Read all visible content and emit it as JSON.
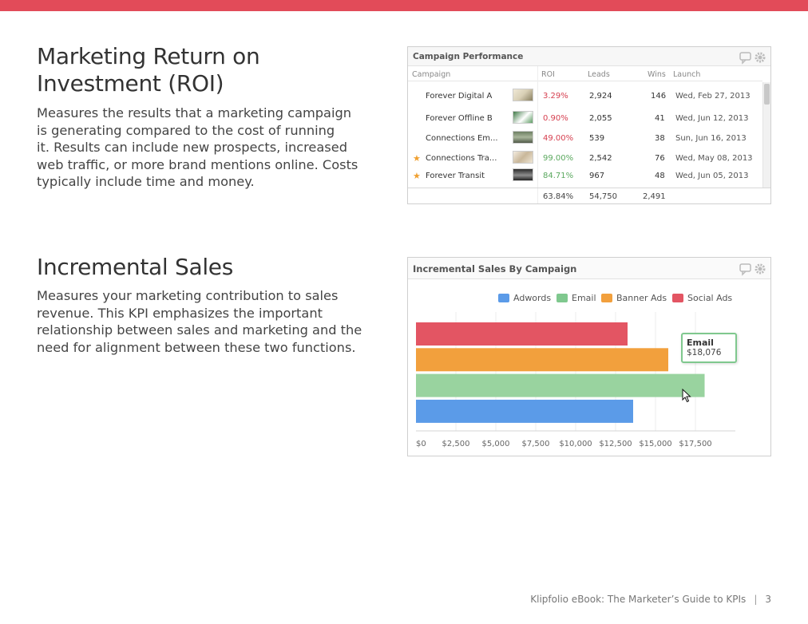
{
  "colors": {
    "accent": "#e24b59"
  },
  "roi": {
    "title_line1": "Marketing Return on",
    "title_line2": "Investment (ROI)",
    "body": [
      "Measures the results that a marketing campaign",
      "is generating compared to the cost of running",
      "it. Results can include new prospects, increased",
      "web traffic, or more brand mentions online. Costs",
      "typically include time and money."
    ]
  },
  "campaign_widget": {
    "title": "Campaign Performance",
    "icons": [
      "comment-icon",
      "gear-icon"
    ],
    "columns": [
      "Campaign",
      "ROI",
      "Leads",
      "Wins",
      "Launch"
    ],
    "rows": [
      {
        "name": "Forever Digital A",
        "roi": "3.29%",
        "roi_status": "red",
        "leads": "2,924",
        "wins": "146",
        "launch": "Wed, Feb 27, 2013",
        "starred": false
      },
      {
        "name": "Forever Offline B",
        "roi": "0.90%",
        "roi_status": "red",
        "leads": "2,055",
        "wins": "41",
        "launch": "Wed, Jun 12, 2013",
        "starred": false
      },
      {
        "name": "Connections Em...",
        "roi": "49.00%",
        "roi_status": "red",
        "leads": "539",
        "wins": "38",
        "launch": "Sun, Jun 16, 2013",
        "starred": false
      },
      {
        "name": "Connections Tra...",
        "roi": "99.00%",
        "roi_status": "green",
        "leads": "2,542",
        "wins": "76",
        "launch": "Wed, May 08, 2013",
        "starred": true
      },
      {
        "name": "Forever Transit",
        "roi": "84.71%",
        "roi_status": "green",
        "leads": "967",
        "wins": "48",
        "launch": "Wed, Jun 05, 2013",
        "starred": true
      }
    ],
    "totals": {
      "roi": "63.84%",
      "leads": "54,750",
      "wins": "2,491"
    }
  },
  "incremental": {
    "title": "Incremental Sales",
    "body": [
      "Measures your marketing contribution to sales",
      "revenue. This KPI emphasizes the important",
      "relationship between sales and marketing and the",
      "need for alignment between these two functions."
    ]
  },
  "sales_widget": {
    "title": "Incremental Sales By Campaign",
    "icons": [
      "comment-icon",
      "gear-icon"
    ],
    "tooltip": {
      "name": "Email",
      "value": "$18,076"
    }
  },
  "chart_data": {
    "type": "bar",
    "orientation": "horizontal",
    "title": "Incremental Sales By Campaign",
    "legend_position": "top-right",
    "grid": true,
    "xlim": [
      0,
      20000
    ],
    "x_ticks": [
      0,
      2500,
      5000,
      7500,
      10000,
      12500,
      15000,
      17500
    ],
    "x_tick_labels": [
      "$0",
      "$2,500",
      "$5,000",
      "$7,500",
      "$10,000",
      "$12,500",
      "$15,000",
      "$17,500"
    ],
    "series": [
      {
        "name": "Social Ads",
        "value": 13250,
        "color": "#e35563"
      },
      {
        "name": "Banner Ads",
        "value": 15800,
        "color": "#f2a03d"
      },
      {
        "name": "Email",
        "value": 18076,
        "color": "#99d39f"
      },
      {
        "name": "Adwords",
        "value": 13600,
        "color": "#5b9be8"
      }
    ],
    "legend": [
      {
        "name": "Adwords",
        "color": "#5b9be8"
      },
      {
        "name": "Email",
        "color": "#7fc88e"
      },
      {
        "name": "Banner Ads",
        "color": "#f2a03d"
      },
      {
        "name": "Social Ads",
        "color": "#e35563"
      }
    ]
  },
  "footer": {
    "text": "Klipfolio eBook: The Marketer’s Guide to KPIs",
    "page": "3"
  }
}
